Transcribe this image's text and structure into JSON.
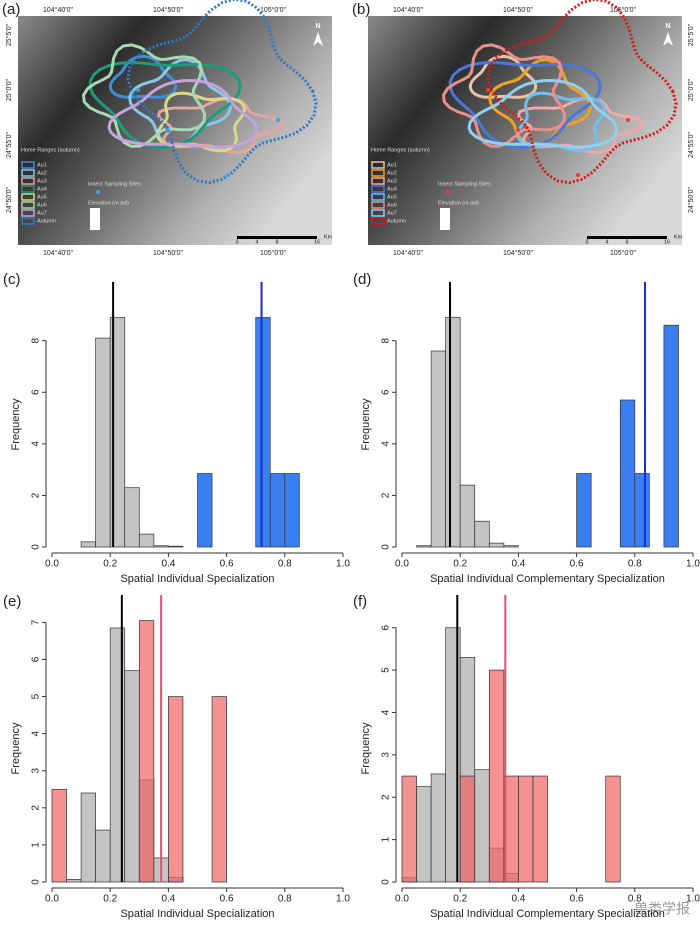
{
  "maps": [
    {
      "label": "(a)",
      "side": "left",
      "top_ticks": [
        "104°40'0\"",
        "104°50'0\"",
        "105°0'0\""
      ],
      "bottom_ticks": [
        "104°40'0\"",
        "104°50'0\"",
        "105°0'0\""
      ],
      "side_ticks": [
        "25°5'0\"",
        "25°0'0\"",
        "24°55'0\"",
        "24°50'0\""
      ],
      "legend_title": "Home Ranges (autumn)",
      "legend": [
        {
          "name": "Au1",
          "color": "#3f8fd8"
        },
        {
          "name": "Au2",
          "color": "#86c8ec"
        },
        {
          "name": "Au3",
          "color": "#e8a49c"
        },
        {
          "name": "Au4",
          "color": "#1f9a7a"
        },
        {
          "name": "Au5",
          "color": "#d9d98a"
        },
        {
          "name": "Au6",
          "color": "#a8d8b0"
        },
        {
          "name": "Au7",
          "color": "#c7a2dc"
        },
        {
          "name": "Autumn",
          "color": "#2f78c4"
        }
      ],
      "sampling": "Insect Sampling Sites",
      "sampling_color": "#3aa0e8",
      "elevation": "Elevation (m asl)",
      "scale_unit": "Km",
      "scale": [
        "0",
        "4",
        "8",
        "16"
      ],
      "north": "N"
    },
    {
      "label": "(b)",
      "side": "right",
      "top_ticks": [
        "104°40'0\"",
        "104°50'0\"",
        "105°0'0\""
      ],
      "bottom_ticks": [
        "104°40'0\"",
        "104°50'0\"",
        "105°0'0\""
      ],
      "side_ticks": [
        "25°5'0\"",
        "25°0'0\"",
        "24°55'0\"",
        "24°50'0\""
      ],
      "legend_title": "Home Ranges (autumn)",
      "legend": [
        {
          "name": "Au1",
          "color": "#e6c2a8"
        },
        {
          "name": "Au2",
          "color": "#f2a020"
        },
        {
          "name": "Au3",
          "color": "#f0a8a8"
        },
        {
          "name": "Au4",
          "color": "#4a78d8"
        },
        {
          "name": "Au5",
          "color": "#70c0ee"
        },
        {
          "name": "Au6",
          "color": "#e8908c"
        },
        {
          "name": "Au7",
          "color": "#90d0f4"
        },
        {
          "name": "Autumn",
          "color": "#d81818"
        }
      ],
      "sampling": "Insect Sampling Sites",
      "sampling_color": "#e84030",
      "elevation": "Elevation (m asl)",
      "scale_unit": "Km",
      "scale": [
        "0",
        "4",
        "8",
        "16"
      ],
      "north": "N"
    }
  ],
  "chart_data": [
    {
      "type": "histogram",
      "panel": "(c)",
      "xlabel": "Spatial Individual Specialization",
      "ylabel": "Frequency",
      "bins": [
        0,
        0.05,
        0.1,
        0.15,
        0.2,
        0.25,
        0.3,
        0.35,
        0.4,
        0.45,
        0.5,
        0.55,
        0.6,
        0.65,
        0.7,
        0.75,
        0.8,
        0.85,
        0.9,
        0.95,
        1
      ],
      "series": [
        {
          "color": "#c4c4c4",
          "values": [
            0,
            0,
            0.2,
            8.1,
            8.9,
            2.3,
            0.5,
            0.05,
            0.03,
            0,
            0,
            0,
            0,
            0,
            0,
            0,
            0,
            0,
            0,
            0
          ]
        },
        {
          "color": "#3a7ef0",
          "values": [
            0,
            0,
            0,
            0,
            0,
            0,
            0,
            0,
            0,
            0,
            2.85,
            0,
            0,
            0,
            8.9,
            2.85,
            2.85,
            0,
            0,
            0
          ]
        }
      ],
      "ref_lines": [
        {
          "value": 0.21,
          "color": "#000000"
        },
        {
          "value": 0.72,
          "color": "#1a2ad0"
        }
      ],
      "xlim": [
        0,
        1
      ],
      "xticks": [
        {
          "value": 0,
          "label": "0.0"
        },
        0.2,
        0.4,
        0.6,
        0.8,
        {
          "value": 1,
          "label": "1.0"
        }
      ],
      "ylim": [
        0,
        9.5
      ],
      "yticks": [
        0,
        2,
        4,
        6,
        8
      ]
    },
    {
      "type": "histogram",
      "panel": "(d)",
      "xlabel": "Spatial Individual Complementary Specialization",
      "ylabel": "Frequency",
      "bins": [
        0,
        0.05,
        0.1,
        0.15,
        0.2,
        0.25,
        0.3,
        0.35,
        0.4,
        0.45,
        0.5,
        0.55,
        0.6,
        0.65,
        0.7,
        0.75,
        0.8,
        0.85,
        0.9,
        0.95,
        1
      ],
      "series": [
        {
          "color": "#c4c4c4",
          "values": [
            0,
            0.05,
            7.6,
            8.9,
            2.4,
            1.0,
            0.15,
            0.05,
            0,
            0,
            0,
            0,
            0,
            0,
            0,
            0,
            0,
            0,
            0,
            0
          ]
        },
        {
          "color": "#3a7ef0",
          "values": [
            0,
            0,
            0,
            0,
            0,
            0,
            0,
            0,
            0,
            0,
            0,
            0,
            2.85,
            0,
            0,
            5.7,
            2.85,
            0,
            8.6,
            0
          ]
        }
      ],
      "ref_lines": [
        {
          "value": 0.165,
          "color": "#000000"
        },
        {
          "value": 0.835,
          "color": "#1a2ad0"
        }
      ],
      "xlim": [
        0,
        1
      ],
      "xticks": [
        {
          "value": 0,
          "label": "0.0"
        },
        0.2,
        0.4,
        0.6,
        0.8,
        {
          "value": 1,
          "label": "1.0"
        }
      ],
      "ylim": [
        0,
        9.5
      ],
      "yticks": [
        0,
        2,
        4,
        6,
        8
      ]
    },
    {
      "type": "histogram",
      "panel": "(e)",
      "xlabel": "Spatial Individual Specialization",
      "ylabel": "Frequency",
      "bins": [
        0,
        0.05,
        0.1,
        0.15,
        0.2,
        0.25,
        0.3,
        0.35,
        0.4,
        0.45,
        0.5,
        0.55,
        0.6,
        0.65,
        0.7,
        0.75,
        0.8,
        0.85,
        0.9,
        0.95,
        1
      ],
      "series": [
        {
          "color": "#c4c4c4",
          "values": [
            0,
            0.07,
            2.4,
            1.4,
            6.85,
            5.7,
            2.75,
            0.65,
            0.12,
            0,
            0,
            0,
            0,
            0,
            0,
            0,
            0,
            0,
            0,
            0
          ]
        },
        {
          "color": "rgba(240,100,100,0.7)",
          "values": [
            2.5,
            0,
            0,
            0,
            0,
            0,
            7.05,
            0,
            5.0,
            0,
            0,
            5.0,
            0,
            0,
            0,
            0,
            0,
            0,
            0,
            0
          ]
        }
      ],
      "ref_lines": [
        {
          "value": 0.24,
          "color": "#000000"
        },
        {
          "value": 0.375,
          "color": "#e05070"
        }
      ],
      "xlim": [
        0,
        1
      ],
      "xticks": [
        {
          "value": 0,
          "label": "0.0"
        },
        0.2,
        0.4,
        0.6,
        0.8,
        {
          "value": 1,
          "label": "1.0"
        }
      ],
      "ylim": [
        0,
        7.2
      ],
      "yticks": [
        0,
        1,
        2,
        3,
        4,
        5,
        6,
        7
      ]
    },
    {
      "type": "histogram",
      "panel": "(f)",
      "xlabel": "Spatial Individual Complementary Specialization",
      "ylabel": "Frequency",
      "bins": [
        0,
        0.05,
        0.1,
        0.15,
        0.2,
        0.25,
        0.3,
        0.35,
        0.4,
        0.45,
        0.5,
        0.55,
        0.6,
        0.65,
        0.7,
        0.75,
        0.8,
        0.85,
        0.9,
        0.95,
        1
      ],
      "series": [
        {
          "color": "#c4c4c4",
          "values": [
            0.1,
            2.25,
            2.55,
            6.0,
            5.3,
            2.65,
            0.8,
            0.2,
            0,
            0,
            0,
            0,
            0,
            0,
            0,
            0,
            0,
            0,
            0,
            0
          ]
        },
        {
          "color": "rgba(240,100,100,0.7)",
          "values": [
            2.5,
            0,
            0,
            0,
            2.5,
            0,
            5.0,
            2.5,
            2.5,
            2.5,
            0,
            0,
            0,
            0,
            2.5,
            0,
            0,
            0,
            0,
            0
          ]
        }
      ],
      "ref_lines": [
        {
          "value": 0.19,
          "color": "#000000"
        },
        {
          "value": 0.355,
          "color": "#e05070"
        }
      ],
      "xlim": [
        0,
        1
      ],
      "xticks": [
        {
          "value": 0,
          "label": "0.0"
        },
        0.2,
        0.4,
        0.6,
        0.8,
        {
          "value": 1,
          "label": "1.0"
        }
      ],
      "ylim": [
        0,
        6.3
      ],
      "yticks": [
        0,
        1,
        2,
        3,
        4,
        5,
        6
      ]
    }
  ],
  "watermark": "兽类学报"
}
